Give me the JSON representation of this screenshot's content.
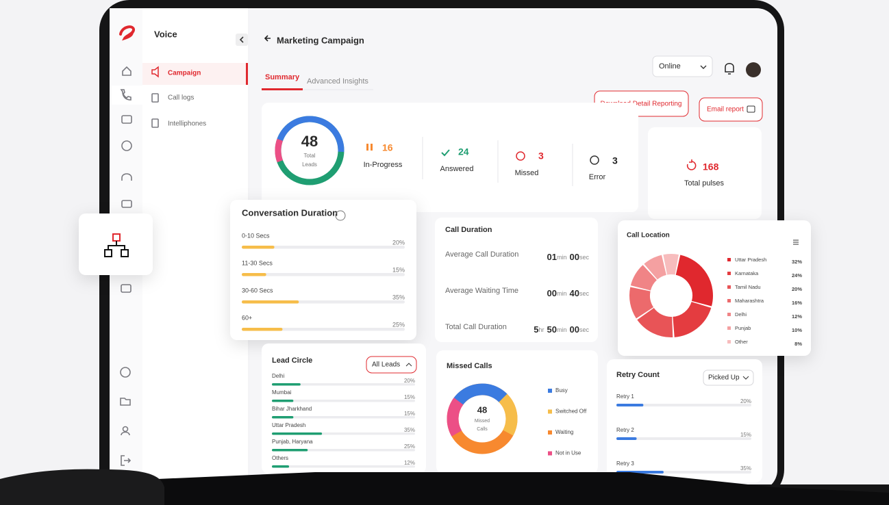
{
  "sidebar": {
    "title": "Voice",
    "menu": [
      "Campaign",
      "Call logs",
      "Intelliphones"
    ]
  },
  "header": {
    "title": "Marketing Campaign",
    "status": "Online"
  },
  "tabs": [
    "Summary",
    "Advanced Insights"
  ],
  "buttons": [
    "Download Detail Reporting",
    "Email report"
  ],
  "summary": {
    "total": {
      "value": "48",
      "caption": [
        "Total",
        "Leads"
      ]
    },
    "stats": [
      {
        "value": "16",
        "label": "In-Progress"
      },
      {
        "value": "24",
        "label": "Answered"
      },
      {
        "value": "3",
        "label": "Missed"
      },
      {
        "value": "3",
        "label": "Error"
      }
    ],
    "pulses": {
      "value": "168",
      "label": "Total pulses"
    }
  },
  "conversation_duration": {
    "title": "Conversation Duration",
    "rows": [
      {
        "label": "0-10 Secs",
        "value": 20,
        "value_label": "20%"
      },
      {
        "label": "11-30 Secs",
        "value": 15,
        "value_label": "15%"
      },
      {
        "label": "30-60 Secs",
        "value": 35,
        "value_label": "35%"
      },
      {
        "label": "60+",
        "value": 25,
        "value_label": "25%"
      }
    ]
  },
  "call_duration": {
    "title": "Call Duration",
    "rows": [
      {
        "label": "Average Call Duration",
        "parts": [
          {
            "number": "01",
            "unit": "min"
          },
          {
            "number": "00",
            "unit": "sec"
          }
        ]
      },
      {
        "label": "Average Waiting Time",
        "parts": [
          {
            "number": "00",
            "unit": "min"
          },
          {
            "number": "40",
            "unit": "sec"
          }
        ]
      },
      {
        "label": "Total Call Duration",
        "parts": [
          {
            "number": "5",
            "unit": "hr"
          },
          {
            "number": "50",
            "unit": "min"
          },
          {
            "number": "00",
            "unit": "sec"
          }
        ]
      }
    ]
  },
  "call_location": {
    "title": "Call Location",
    "items": [
      {
        "name": "Uttar Pradesh",
        "value": 32,
        "value_label": "32%",
        "color": "#e0282e"
      },
      {
        "name": "Karnataka",
        "value": 24,
        "value_label": "24%",
        "color": "#e43c40"
      },
      {
        "name": "Tamil Nadu",
        "value": 20,
        "value_label": "20%",
        "color": "#e85457"
      },
      {
        "name": "Maharashtra",
        "value": 16,
        "value_label": "16%",
        "color": "#ec6a6c"
      },
      {
        "name": "Delhi",
        "value": 12,
        "value_label": "12%",
        "color": "#f08486"
      },
      {
        "name": "Punjab",
        "value": 10,
        "value_label": "10%",
        "color": "#f4a0a1"
      },
      {
        "name": "Other",
        "value": 8,
        "value_label": "8%",
        "color": "#f7bcbd"
      }
    ]
  },
  "lead_circle": {
    "title": "Lead Circle",
    "filter": "All Leads",
    "rows": [
      {
        "label": "Delhi",
        "value": 20,
        "value_label": "20%"
      },
      {
        "label": "Mumbai",
        "value": 15,
        "value_label": "15%"
      },
      {
        "label": "Bihar Jharkhand",
        "value": 15,
        "value_label": "15%"
      },
      {
        "label": "Uttar Pradesh",
        "value": 35,
        "value_label": "35%"
      },
      {
        "label": "Punjab, Haryana",
        "value": 25,
        "value_label": "25%"
      },
      {
        "label": "Others",
        "value": 12,
        "value_label": "12%"
      }
    ]
  },
  "missed_calls": {
    "title": "Missed Calls",
    "value": "48",
    "caption": [
      "Missed",
      "Calls"
    ],
    "legend": [
      {
        "name": "Busy",
        "color": "#3b7be0"
      },
      {
        "name": "Switched Off",
        "color": "#f6bd4a"
      },
      {
        "name": "Waiting",
        "color": "#f7892f"
      },
      {
        "name": "Not in Use",
        "color": "#ec4f86"
      }
    ]
  },
  "retry_count": {
    "title": "Retry Count",
    "filter": "Picked Up",
    "rows": [
      {
        "label": "Retry 1",
        "value": 20,
        "value_label": "20%"
      },
      {
        "label": "Retry 2",
        "value": 15,
        "value_label": "15%"
      },
      {
        "label": "Retry 3",
        "value": 35,
        "value_label": "35%"
      }
    ]
  }
}
